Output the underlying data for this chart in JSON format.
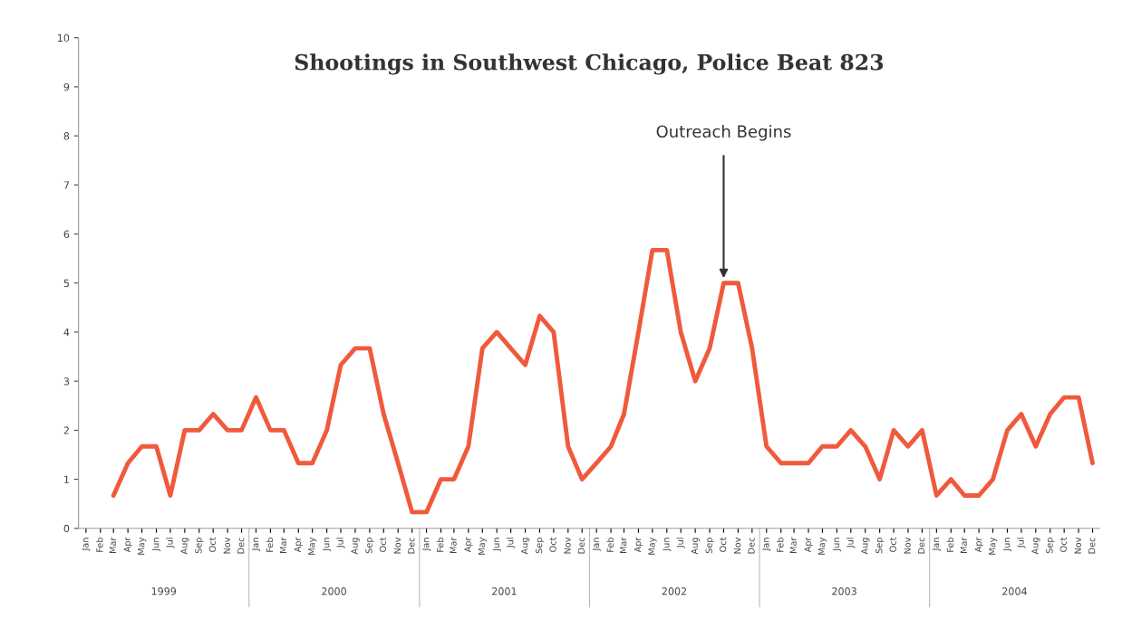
{
  "chart_data": {
    "type": "line",
    "title": "Shootings in Southwest Chicago, Police Beat 823",
    "x": [
      "1999-03",
      "1999-04",
      "1999-05",
      "1999-06",
      "1999-07",
      "1999-08",
      "1999-09",
      "1999-10",
      "1999-11",
      "1999-12",
      "2000-01",
      "2000-02",
      "2000-03",
      "2000-04",
      "2000-05",
      "2000-06",
      "2000-07",
      "2000-08",
      "2000-09",
      "2000-10",
      "2000-11",
      "2000-12",
      "2001-01",
      "2001-02",
      "2001-03",
      "2001-04",
      "2001-05",
      "2001-06",
      "2001-07",
      "2001-08",
      "2001-09",
      "2001-10",
      "2001-11",
      "2001-12",
      "2002-01",
      "2002-02",
      "2002-03",
      "2002-04",
      "2002-05",
      "2002-06",
      "2002-07",
      "2002-08",
      "2002-09",
      "2002-10",
      "2002-11",
      "2002-12",
      "2003-01",
      "2003-02",
      "2003-03",
      "2003-04",
      "2003-05",
      "2003-06",
      "2003-07",
      "2003-08",
      "2003-09",
      "2003-10",
      "2003-11",
      "2003-12",
      "2004-01",
      "2004-02",
      "2004-03",
      "2004-04",
      "2004-05",
      "2004-06",
      "2004-07",
      "2004-08",
      "2004-09",
      "2004-10",
      "2004-11",
      "2004-12"
    ],
    "series": [
      {
        "color": "#f05a3c",
        "values": [
          0.67,
          1.33,
          1.67,
          1.67,
          0.67,
          2,
          2,
          2.33,
          2,
          2,
          2.67,
          2,
          2,
          1.33,
          1.33,
          2,
          3.33,
          3.67,
          3.67,
          2.33,
          1.33,
          0.33,
          0.33,
          1,
          1,
          1.67,
          3.67,
          4,
          3.67,
          3.33,
          4.33,
          4,
          1.67,
          1,
          1.33,
          1.67,
          2.33,
          4,
          5.67,
          5.67,
          4,
          3,
          3.67,
          5,
          5,
          3.67,
          1.67,
          1.33,
          1.33,
          1.33,
          1.67,
          1.67,
          2,
          1.67,
          1,
          2,
          1.67,
          2,
          0.67,
          1,
          0.67,
          0.67,
          1,
          2,
          2.33,
          1.67,
          2.33,
          2.67,
          2.67,
          1.33
        ]
      }
    ],
    "xlim": [
      "1998-12-16",
      "2004-12-16"
    ],
    "xticks": [
      {
        "value": "1999-01",
        "label": "Jan"
      },
      {
        "value": "1999-02",
        "label": "Feb"
      },
      {
        "value": "1999-03",
        "label": "Mar"
      },
      {
        "value": "1999-04",
        "label": "Apr"
      },
      {
        "value": "1999-05",
        "label": "May"
      },
      {
        "value": "1999-06",
        "label": "Jun"
      },
      {
        "value": "1999-07",
        "label": "Jul"
      },
      {
        "value": "1999-08",
        "label": "Aug"
      },
      {
        "value": "1999-09",
        "label": "Sep"
      },
      {
        "value": "1999-10",
        "label": "Oct"
      },
      {
        "value": "1999-11",
        "label": "Nov"
      },
      {
        "value": "1999-12",
        "label": "Dec"
      },
      {
        "value": "2000-01",
        "label": "Jan"
      },
      {
        "value": "2000-02",
        "label": "Feb"
      },
      {
        "value": "2000-03",
        "label": "Mar"
      },
      {
        "value": "2000-04",
        "label": "Apr"
      },
      {
        "value": "2000-05",
        "label": "May"
      },
      {
        "value": "2000-06",
        "label": "Jun"
      },
      {
        "value": "2000-07",
        "label": "Jul"
      },
      {
        "value": "2000-08",
        "label": "Aug"
      },
      {
        "value": "2000-09",
        "label": "Sep"
      },
      {
        "value": "2000-10",
        "label": "Oct"
      },
      {
        "value": "2000-11",
        "label": "Nov"
      },
      {
        "value": "2000-12",
        "label": "Dec"
      },
      {
        "value": "2001-01",
        "label": "Jan"
      },
      {
        "value": "2001-02",
        "label": "Feb"
      },
      {
        "value": "2001-03",
        "label": "Mar"
      },
      {
        "value": "2001-04",
        "label": "Apr"
      },
      {
        "value": "2001-05",
        "label": "May"
      },
      {
        "value": "2001-06",
        "label": "Jun"
      },
      {
        "value": "2001-07",
        "label": "Jul"
      },
      {
        "value": "2001-08",
        "label": "Aug"
      },
      {
        "value": "2001-09",
        "label": "Sep"
      },
      {
        "value": "2001-10",
        "label": "Oct"
      },
      {
        "value": "2001-11",
        "label": "Nov"
      },
      {
        "value": "2001-12",
        "label": "Dec"
      },
      {
        "value": "2002-01",
        "label": "Jan"
      },
      {
        "value": "2002-02",
        "label": "Feb"
      },
      {
        "value": "2002-03",
        "label": "Mar"
      },
      {
        "value": "2002-04",
        "label": "Apr"
      },
      {
        "value": "2002-05",
        "label": "May"
      },
      {
        "value": "2002-06",
        "label": "Jun"
      },
      {
        "value": "2002-07",
        "label": "Jul"
      },
      {
        "value": "2002-08",
        "label": "Aug"
      },
      {
        "value": "2002-09",
        "label": "Sep"
      },
      {
        "value": "2002-10",
        "label": "Oct"
      },
      {
        "value": "2002-11",
        "label": "Nov"
      },
      {
        "value": "2002-12",
        "label": "Dec"
      },
      {
        "value": "2003-01",
        "label": "Jan"
      },
      {
        "value": "2003-02",
        "label": "Feb"
      },
      {
        "value": "2003-03",
        "label": "Mar"
      },
      {
        "value": "2003-04",
        "label": "Apr"
      },
      {
        "value": "2003-05",
        "label": "May"
      },
      {
        "value": "2003-06",
        "label": "Jun"
      },
      {
        "value": "2003-07",
        "label": "Jul"
      },
      {
        "value": "2003-08",
        "label": "Aug"
      },
      {
        "value": "2003-09",
        "label": "Sep"
      },
      {
        "value": "2003-10",
        "label": "Oct"
      },
      {
        "value": "2003-11",
        "label": "Nov"
      },
      {
        "value": "2003-12",
        "label": "Dec"
      },
      {
        "value": "2004-01",
        "label": "Jan"
      },
      {
        "value": "2004-02",
        "label": "Feb"
      },
      {
        "value": "2004-03",
        "label": "Mar"
      },
      {
        "value": "2004-04",
        "label": "Apr"
      },
      {
        "value": "2004-05",
        "label": "May"
      },
      {
        "value": "2004-06",
        "label": "Jun"
      },
      {
        "value": "2004-07",
        "label": "Jul"
      },
      {
        "value": "2004-08",
        "label": "Aug"
      },
      {
        "value": "2004-09",
        "label": "Sep"
      },
      {
        "value": "2004-10",
        "label": "Oct"
      },
      {
        "value": "2004-11",
        "label": "Nov"
      },
      {
        "value": "2004-12",
        "label": "Dec"
      }
    ],
    "ylim": [
      0,
      10
    ],
    "yticks": [
      0,
      1,
      2,
      3,
      4,
      5,
      6,
      7,
      8,
      9,
      10
    ],
    "grid": false,
    "annotations": [
      {
        "text": "Outreach Begins",
        "x": "2002-10",
        "y": 5
      },
      "1999",
      "2000",
      "2001",
      "2002",
      "2003",
      "2004"
    ]
  }
}
